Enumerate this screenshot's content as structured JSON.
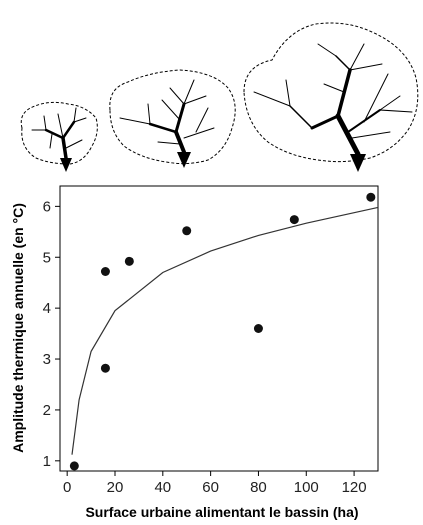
{
  "chart_data": {
    "type": "scatter",
    "title": "",
    "xlabel": "Surface urbaine alimentant le bassin (ha)",
    "ylabel": "Amplitude thermique annuelle (en °C)",
    "xlim": [
      -3,
      130
    ],
    "ylim": [
      0.8,
      6.4
    ],
    "xticks": [
      0,
      20,
      40,
      60,
      80,
      100,
      120
    ],
    "yticks": [
      1,
      2,
      3,
      4,
      5,
      6
    ],
    "grid": false,
    "series": [
      {
        "values": [
          {
            "x": 3,
            "y": 0.9
          },
          {
            "x": 16,
            "y": 4.72
          },
          {
            "x": 16,
            "y": 2.82
          },
          {
            "x": 26,
            "y": 4.92
          },
          {
            "x": 50,
            "y": 5.52
          },
          {
            "x": 80,
            "y": 3.6
          },
          {
            "x": 95,
            "y": 5.74
          },
          {
            "x": 127,
            "y": 6.18
          }
        ]
      }
    ],
    "fit_curve": {
      "type": "logarithmic",
      "x": [
        2,
        5,
        10,
        20,
        40,
        60,
        80,
        100,
        130
      ],
      "y": [
        1.12,
        2.2,
        3.15,
        3.95,
        4.7,
        5.12,
        5.43,
        5.67,
        5.98
      ]
    },
    "illustration": {
      "items": [
        "small-catchment-tree",
        "medium-catchment-tree",
        "large-catchment-tree"
      ]
    }
  }
}
